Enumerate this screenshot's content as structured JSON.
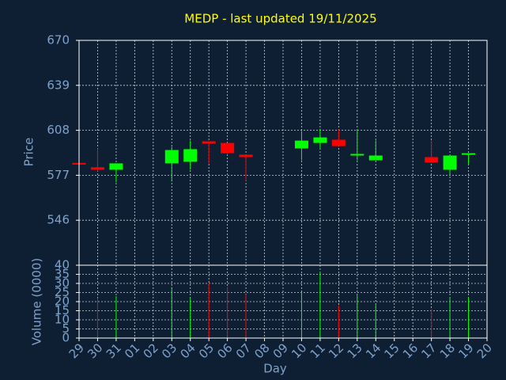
{
  "chart_data": [
    {
      "type": "candlestick",
      "title": "MEDP - last updated 19/11/2025",
      "xlabel": "Day",
      "ylabel": "Price",
      "categories": [
        "29",
        "30",
        "31",
        "01",
        "02",
        "03",
        "04",
        "05",
        "06",
        "07",
        "08",
        "09",
        "10",
        "11",
        "12",
        "13",
        "14",
        "15",
        "16",
        "17",
        "18",
        "19",
        "20"
      ],
      "open": [
        585.5,
        582.5,
        580.8,
        null,
        null,
        585.2,
        586.3,
        600.4,
        599.3,
        591.2,
        null,
        null,
        595.5,
        599.3,
        601.5,
        591.2,
        587.3,
        null,
        null,
        589.5,
        580.8,
        591.2,
        null
      ],
      "high": [
        586,
        595.5,
        585.2,
        null,
        null,
        596.6,
        601,
        600.4,
        599.3,
        591.2,
        null,
        null,
        607.5,
        609.1,
        608.6,
        608.6,
        601,
        null,
        null,
        601,
        590.6,
        592.2,
        null
      ],
      "low": [
        584,
        579.7,
        572.1,
        null,
        null,
        572.7,
        580.8,
        585.2,
        591.2,
        573.2,
        null,
        null,
        587.3,
        595,
        597.1,
        587.3,
        587.3,
        null,
        null,
        585.8,
        577,
        584.6,
        null
      ],
      "close": [
        584.5,
        580.8,
        585.2,
        null,
        null,
        594.4,
        595,
        598.8,
        592.2,
        589.5,
        null,
        null,
        600.9,
        603.1,
        597.1,
        591.7,
        590.6,
        null,
        null,
        585.8,
        590.6,
        592.2,
        null
      ],
      "up_color": "#00ff00",
      "down_color": "#ff0000",
      "ylim": [
        515,
        670
      ],
      "yticks": [
        546,
        577,
        608,
        639,
        670
      ],
      "grid": true
    },
    {
      "type": "bar",
      "ylabel": "Volume (0000)",
      "values": [
        null,
        22,
        23,
        null,
        null,
        28,
        22,
        30,
        28,
        24,
        null,
        null,
        25,
        36.5,
        18,
        23.5,
        19,
        null,
        null,
        16,
        22,
        22.5,
        null
      ],
      "ylim": [
        0,
        40
      ],
      "yticks": [
        0,
        5,
        10,
        15,
        20,
        25,
        30,
        35,
        40
      ],
      "grid": true
    }
  ]
}
